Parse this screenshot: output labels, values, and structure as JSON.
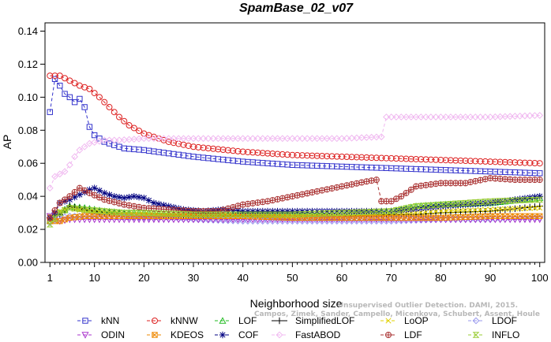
{
  "chart_data": {
    "type": "line",
    "title": "SpamBase_02_v07",
    "xlabel": "Neighborhood size",
    "ylabel": "AP",
    "xlim": [
      0,
      101
    ],
    "ylim": [
      0,
      0.145
    ],
    "x_ticks": [
      1,
      10,
      20,
      30,
      40,
      50,
      60,
      70,
      80,
      90,
      100
    ],
    "x_tick_labels": [
      "1",
      "10",
      "20",
      "30",
      "40",
      "50",
      "60",
      "70",
      "80",
      "90",
      "100"
    ],
    "y_ticks": [
      0,
      0.02,
      0.04,
      0.06,
      0.08,
      0.1,
      0.12,
      0.14
    ],
    "y_tick_labels": [
      "0.00",
      "0.02",
      "0.04",
      "0.06",
      "0.08",
      "0.10",
      "0.12",
      "0.14"
    ],
    "legend_placement": "bottom",
    "watermark": [
      "Campos, Zimek, Sander, Campello, Micenkova, Schubert, Assent, Houle",
      "Unsupervised Outlier Detection. DAMI, 2015."
    ],
    "series": [
      {
        "name": "kNN",
        "color": "#3333cc",
        "marker": "square",
        "dash": "4,3",
        "points": [
          [
            1,
            0.091
          ],
          [
            2,
            0.111
          ],
          [
            3,
            0.107
          ],
          [
            4,
            0.102
          ],
          [
            5,
            0.1
          ],
          [
            6,
            0.097
          ],
          [
            7,
            0.099
          ],
          [
            8,
            0.094
          ],
          [
            9,
            0.082
          ],
          [
            10,
            0.077
          ],
          [
            12,
            0.073
          ],
          [
            14,
            0.071
          ],
          [
            16,
            0.069
          ],
          [
            20,
            0.068
          ],
          [
            25,
            0.066
          ],
          [
            30,
            0.064
          ],
          [
            40,
            0.061
          ],
          [
            50,
            0.059
          ],
          [
            60,
            0.058
          ],
          [
            70,
            0.057
          ],
          [
            80,
            0.056
          ],
          [
            90,
            0.055
          ],
          [
            100,
            0.054
          ]
        ]
      },
      {
        "name": "kNNW",
        "color": "#dd2222",
        "marker": "circle",
        "dash": "4,3",
        "points": [
          [
            1,
            0.113
          ],
          [
            3,
            0.113
          ],
          [
            5,
            0.11
          ],
          [
            7,
            0.107
          ],
          [
            9,
            0.105
          ],
          [
            11,
            0.1
          ],
          [
            13,
            0.094
          ],
          [
            15,
            0.088
          ],
          [
            17,
            0.083
          ],
          [
            20,
            0.078
          ],
          [
            25,
            0.073
          ],
          [
            30,
            0.07
          ],
          [
            40,
            0.067
          ],
          [
            50,
            0.065
          ],
          [
            60,
            0.064
          ],
          [
            70,
            0.063
          ],
          [
            80,
            0.062
          ],
          [
            90,
            0.061
          ],
          [
            100,
            0.06
          ]
        ]
      },
      {
        "name": "LOF",
        "color": "#22bb22",
        "marker": "triangle",
        "dash": "4,3",
        "points": [
          [
            1,
            0.025
          ],
          [
            3,
            0.03
          ],
          [
            5,
            0.034
          ],
          [
            8,
            0.033
          ],
          [
            12,
            0.031
          ],
          [
            16,
            0.03
          ],
          [
            20,
            0.03
          ],
          [
            30,
            0.029
          ],
          [
            40,
            0.029
          ],
          [
            50,
            0.029
          ],
          [
            60,
            0.03
          ],
          [
            70,
            0.031
          ],
          [
            75,
            0.034
          ],
          [
            80,
            0.035
          ],
          [
            90,
            0.036
          ],
          [
            100,
            0.039
          ]
        ]
      },
      {
        "name": "SimplifiedLOF",
        "color": "#000000",
        "marker": "plus",
        "dash": "none",
        "points": [
          [
            1,
            0.027
          ],
          [
            3,
            0.029
          ],
          [
            5,
            0.034
          ],
          [
            8,
            0.032
          ],
          [
            12,
            0.03
          ],
          [
            16,
            0.029
          ],
          [
            20,
            0.028
          ],
          [
            30,
            0.028
          ],
          [
            40,
            0.028
          ],
          [
            50,
            0.028
          ],
          [
            60,
            0.028
          ],
          [
            70,
            0.029
          ],
          [
            75,
            0.029
          ],
          [
            80,
            0.03
          ],
          [
            90,
            0.031
          ],
          [
            100,
            0.034
          ]
        ]
      },
      {
        "name": "LoOP",
        "color": "#e0d000",
        "marker": "x",
        "dash": "4,3",
        "points": [
          [
            1,
            0.028
          ],
          [
            3,
            0.031
          ],
          [
            5,
            0.033
          ],
          [
            8,
            0.031
          ],
          [
            12,
            0.03
          ],
          [
            16,
            0.029
          ],
          [
            20,
            0.029
          ],
          [
            30,
            0.028
          ],
          [
            40,
            0.028
          ],
          [
            50,
            0.028
          ],
          [
            60,
            0.028
          ],
          [
            70,
            0.029
          ],
          [
            80,
            0.031
          ],
          [
            90,
            0.032
          ],
          [
            100,
            0.033
          ]
        ]
      },
      {
        "name": "LDOF",
        "color": "#9999ee",
        "marker": "diamond",
        "dash": "4,3",
        "points": [
          [
            1,
            0.024
          ],
          [
            3,
            0.027
          ],
          [
            5,
            0.028
          ],
          [
            10,
            0.028
          ],
          [
            20,
            0.027
          ],
          [
            30,
            0.026
          ],
          [
            40,
            0.025
          ],
          [
            50,
            0.025
          ],
          [
            60,
            0.025
          ],
          [
            70,
            0.025
          ],
          [
            80,
            0.026
          ],
          [
            90,
            0.026
          ],
          [
            100,
            0.027
          ]
        ]
      },
      {
        "name": "ODIN",
        "color": "#aa33cc",
        "marker": "triangle-down",
        "dash": "4,3",
        "points": [
          [
            1,
            0.028
          ],
          [
            3,
            0.025
          ],
          [
            5,
            0.026
          ],
          [
            10,
            0.026
          ],
          [
            20,
            0.026
          ],
          [
            30,
            0.026
          ],
          [
            40,
            0.026
          ],
          [
            50,
            0.026
          ],
          [
            60,
            0.026
          ],
          [
            70,
            0.026
          ],
          [
            80,
            0.026
          ],
          [
            90,
            0.026
          ],
          [
            100,
            0.026
          ]
        ]
      },
      {
        "name": "KDEOS",
        "color": "#ee8800",
        "marker": "box-x",
        "dash": "4,3",
        "points": [
          [
            1,
            0.025
          ],
          [
            3,
            0.025
          ],
          [
            5,
            0.027
          ],
          [
            8,
            0.028
          ],
          [
            12,
            0.028
          ],
          [
            16,
            0.028
          ],
          [
            20,
            0.028
          ],
          [
            30,
            0.028
          ],
          [
            40,
            0.028
          ],
          [
            50,
            0.027
          ],
          [
            60,
            0.027
          ],
          [
            70,
            0.027
          ],
          [
            80,
            0.027
          ],
          [
            90,
            0.028
          ],
          [
            100,
            0.028
          ]
        ]
      },
      {
        "name": "COF",
        "color": "#000080",
        "marker": "star",
        "dash": "4,3",
        "points": [
          [
            1,
            0.027
          ],
          [
            2,
            0.03
          ],
          [
            3,
            0.036
          ],
          [
            5,
            0.038
          ],
          [
            7,
            0.041
          ],
          [
            9,
            0.044
          ],
          [
            10,
            0.045
          ],
          [
            12,
            0.042
          ],
          [
            14,
            0.04
          ],
          [
            16,
            0.039
          ],
          [
            18,
            0.04
          ],
          [
            20,
            0.039
          ],
          [
            22,
            0.036
          ],
          [
            25,
            0.034
          ],
          [
            28,
            0.032
          ],
          [
            32,
            0.031
          ],
          [
            36,
            0.032
          ],
          [
            40,
            0.031
          ],
          [
            45,
            0.031
          ],
          [
            50,
            0.031
          ],
          [
            60,
            0.031
          ],
          [
            70,
            0.031
          ],
          [
            80,
            0.034
          ],
          [
            90,
            0.036
          ],
          [
            100,
            0.04
          ]
        ]
      },
      {
        "name": "FastABOD",
        "color": "#f0b8f0",
        "marker": "diamond",
        "dash": "4,3",
        "points": [
          [
            1,
            0.045
          ],
          [
            2,
            0.052
          ],
          [
            4,
            0.055
          ],
          [
            5,
            0.059
          ],
          [
            6,
            0.064
          ],
          [
            7,
            0.068
          ],
          [
            9,
            0.072
          ],
          [
            12,
            0.074
          ],
          [
            15,
            0.074
          ],
          [
            20,
            0.075
          ],
          [
            30,
            0.075
          ],
          [
            40,
            0.075
          ],
          [
            50,
            0.075
          ],
          [
            60,
            0.075
          ],
          [
            68,
            0.076
          ],
          [
            69,
            0.088
          ],
          [
            75,
            0.088
          ],
          [
            80,
            0.088
          ],
          [
            90,
            0.088
          ],
          [
            100,
            0.089
          ]
        ]
      },
      {
        "name": "LDF",
        "color": "#aa3333",
        "marker": "circle-plus",
        "dash": "4,3",
        "points": [
          [
            1,
            0.027
          ],
          [
            3,
            0.036
          ],
          [
            5,
            0.04
          ],
          [
            7,
            0.045
          ],
          [
            9,
            0.042
          ],
          [
            12,
            0.038
          ],
          [
            16,
            0.035
          ],
          [
            20,
            0.033
          ],
          [
            25,
            0.032
          ],
          [
            30,
            0.031
          ],
          [
            35,
            0.031
          ],
          [
            40,
            0.035
          ],
          [
            45,
            0.037
          ],
          [
            50,
            0.04
          ],
          [
            55,
            0.043
          ],
          [
            60,
            0.046
          ],
          [
            65,
            0.049
          ],
          [
            67,
            0.05
          ],
          [
            68,
            0.037
          ],
          [
            70,
            0.037
          ],
          [
            72,
            0.04
          ],
          [
            75,
            0.046
          ],
          [
            80,
            0.048
          ],
          [
            85,
            0.048
          ],
          [
            90,
            0.051
          ],
          [
            95,
            0.05
          ],
          [
            100,
            0.05
          ]
        ]
      },
      {
        "name": "INFLO",
        "color": "#99cc33",
        "marker": "hourglass",
        "dash": "4,3",
        "points": [
          [
            1,
            0.023
          ],
          [
            3,
            0.03
          ],
          [
            5,
            0.033
          ],
          [
            8,
            0.032
          ],
          [
            12,
            0.031
          ],
          [
            16,
            0.03
          ],
          [
            20,
            0.03
          ],
          [
            30,
            0.029
          ],
          [
            40,
            0.029
          ],
          [
            50,
            0.029
          ],
          [
            60,
            0.03
          ],
          [
            70,
            0.031
          ],
          [
            75,
            0.034
          ],
          [
            80,
            0.035
          ],
          [
            90,
            0.037
          ],
          [
            100,
            0.038
          ]
        ]
      }
    ]
  }
}
